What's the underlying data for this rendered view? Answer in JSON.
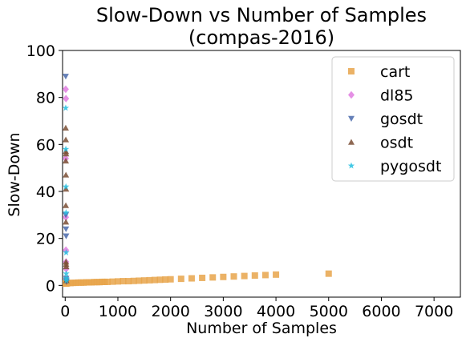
{
  "chart_data": {
    "type": "scatter",
    "title_lines": [
      "Slow-Down vs Number of Samples",
      "(compas-2016)"
    ],
    "xlabel": "Number of Samples",
    "ylabel": "Slow-Down",
    "xlim": [
      -50,
      7500
    ],
    "ylim": [
      -5,
      100
    ],
    "xticks": [
      0,
      1000,
      2000,
      3000,
      4000,
      5000,
      6000,
      7000
    ],
    "yticks": [
      0,
      20,
      40,
      60,
      80,
      100
    ],
    "grid": false,
    "legend_position": "top-right",
    "series": [
      {
        "name": "cart",
        "marker": "square",
        "color": "#e8a54b",
        "points": [
          [
            10,
            0.8
          ],
          [
            20,
            0.8
          ],
          [
            30,
            0.9
          ],
          [
            50,
            1
          ],
          [
            100,
            1
          ],
          [
            150,
            1.1
          ],
          [
            200,
            1.1
          ],
          [
            250,
            1.2
          ],
          [
            300,
            1.2
          ],
          [
            350,
            1.2
          ],
          [
            400,
            1.3
          ],
          [
            450,
            1.3
          ],
          [
            500,
            1.3
          ],
          [
            550,
            1.4
          ],
          [
            600,
            1.4
          ],
          [
            650,
            1.4
          ],
          [
            700,
            1.5
          ],
          [
            750,
            1.5
          ],
          [
            800,
            1.5
          ],
          [
            900,
            1.6
          ],
          [
            1000,
            1.7
          ],
          [
            1100,
            1.8
          ],
          [
            1200,
            1.8
          ],
          [
            1300,
            1.9
          ],
          [
            1400,
            2.0
          ],
          [
            1500,
            2.1
          ],
          [
            1600,
            2.2
          ],
          [
            1700,
            2.3
          ],
          [
            1800,
            2.4
          ],
          [
            1900,
            2.5
          ],
          [
            2000,
            2.6
          ],
          [
            2200,
            2.8
          ],
          [
            2400,
            3.0
          ],
          [
            2600,
            3.2
          ],
          [
            2800,
            3.4
          ],
          [
            3000,
            3.6
          ],
          [
            3200,
            3.8
          ],
          [
            3400,
            4.0
          ],
          [
            3600,
            4.2
          ],
          [
            3800,
            4.4
          ],
          [
            4000,
            4.6
          ],
          [
            5000,
            5.0
          ]
        ]
      },
      {
        "name": "dl85",
        "marker": "diamond",
        "color": "#e07de0",
        "points": [
          [
            10,
            83.5
          ],
          [
            15,
            79.5
          ],
          [
            10,
            54
          ],
          [
            12,
            29
          ],
          [
            14,
            15
          ],
          [
            16,
            10
          ],
          [
            18,
            7
          ]
        ]
      },
      {
        "name": "gosdt",
        "marker": "triangle-down",
        "color": "#4a6aab",
        "points": [
          [
            10,
            89
          ],
          [
            12,
            30
          ],
          [
            15,
            24
          ],
          [
            18,
            21
          ],
          [
            20,
            3
          ],
          [
            22,
            2
          ],
          [
            25,
            1.5
          ]
        ]
      },
      {
        "name": "osdt",
        "marker": "triangle-up",
        "color": "#7b4f35",
        "points": [
          [
            10,
            67
          ],
          [
            12,
            62
          ],
          [
            14,
            57
          ],
          [
            16,
            56
          ],
          [
            12,
            53
          ],
          [
            14,
            47
          ],
          [
            16,
            41
          ],
          [
            12,
            34
          ],
          [
            14,
            27
          ],
          [
            16,
            10
          ],
          [
            18,
            9
          ],
          [
            20,
            8
          ],
          [
            22,
            2
          ]
        ]
      },
      {
        "name": "pygosdt",
        "marker": "star",
        "color": "#24bfe0",
        "points": [
          [
            10,
            75.5
          ],
          [
            12,
            58
          ],
          [
            14,
            42
          ],
          [
            16,
            31
          ],
          [
            18,
            14
          ],
          [
            20,
            5
          ],
          [
            22,
            3
          ],
          [
            24,
            2
          ]
        ]
      }
    ]
  }
}
